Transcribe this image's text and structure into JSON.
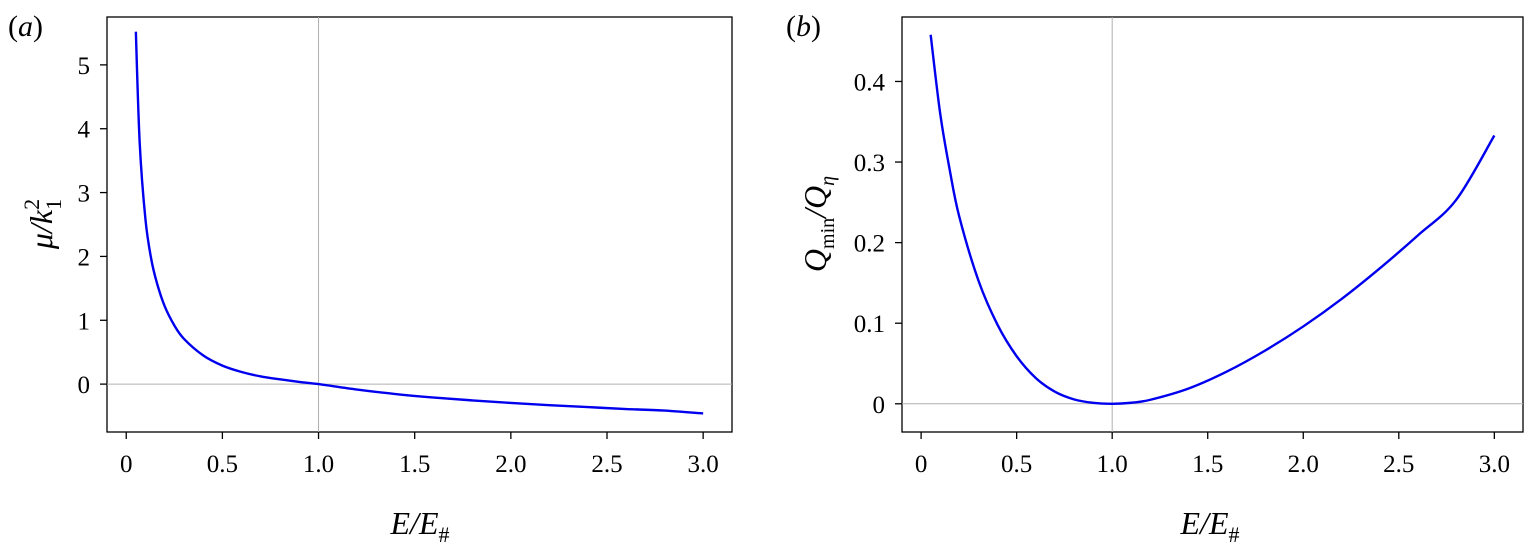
{
  "chart_data": [
    {
      "panel_label_open": "(",
      "panel_label_letter": "a",
      "panel_label_close": ")",
      "type": "line",
      "xlabel": {
        "main": "E/E",
        "sub": "#"
      },
      "ylabel": {
        "main": "μ/k",
        "sup": "2",
        "sub": "1"
      },
      "xlim": [
        -0.1,
        3.15
      ],
      "ylim": [
        -0.75,
        5.75
      ],
      "xticks": [
        0,
        0.5,
        1.0,
        1.5,
        2.0,
        2.5,
        3.0
      ],
      "xtick_labels": [
        "0",
        "0.5",
        "1.0",
        "1.5",
        "2.0",
        "2.5",
        "3.0"
      ],
      "yticks": [
        0,
        1,
        2,
        3,
        4,
        5
      ],
      "ytick_labels": [
        "0",
        "1",
        "2",
        "3",
        "4",
        "5"
      ],
      "reference_lines": {
        "vertical_x": 1.0,
        "horizontal_y": 0
      },
      "series_color": "#0000ee",
      "series": [
        {
          "x": [
            0.05,
            0.07,
            0.1,
            0.13,
            0.16,
            0.2,
            0.25,
            0.3,
            0.4,
            0.5,
            0.6,
            0.7,
            0.8,
            0.9,
            1.0,
            1.2,
            1.4,
            1.6,
            1.8,
            2.0,
            2.2,
            2.4,
            2.6,
            2.8,
            3.0
          ],
          "y": [
            5.52,
            3.78,
            2.58,
            1.96,
            1.58,
            1.22,
            0.92,
            0.71,
            0.45,
            0.29,
            0.19,
            0.12,
            0.075,
            0.035,
            0.0,
            -0.085,
            -0.155,
            -0.21,
            -0.255,
            -0.295,
            -0.33,
            -0.36,
            -0.39,
            -0.415,
            -0.46
          ]
        }
      ]
    },
    {
      "panel_label_open": "(",
      "panel_label_letter": "b",
      "panel_label_close": ")",
      "type": "line",
      "xlabel": {
        "main": "E/E",
        "sub": "#"
      },
      "ylabel": {
        "main": "Q",
        "sub1": "min",
        "mid": "/Q",
        "sub2": "η"
      },
      "xlim": [
        -0.1,
        3.15
      ],
      "ylim": [
        -0.035,
        0.48
      ],
      "xticks": [
        0,
        0.5,
        1.0,
        1.5,
        2.0,
        2.5,
        3.0
      ],
      "xtick_labels": [
        "0",
        "0.5",
        "1.0",
        "1.5",
        "2.0",
        "2.5",
        "3.0"
      ],
      "yticks": [
        0,
        0.1,
        0.2,
        0.3,
        0.4
      ],
      "ytick_labels": [
        "0",
        "0.1",
        "0.2",
        "0.3",
        "0.4"
      ],
      "reference_lines": {
        "vertical_x": 1.0,
        "horizontal_y": 0
      },
      "series_color": "#0000ee",
      "series": [
        {
          "x": [
            0.05,
            0.1,
            0.15,
            0.2,
            0.3,
            0.4,
            0.5,
            0.6,
            0.7,
            0.8,
            0.9,
            1.0,
            1.1,
            1.2,
            1.4,
            1.6,
            1.8,
            2.0,
            2.2,
            2.4,
            2.6,
            2.8,
            3.0
          ],
          "y": [
            0.458,
            0.36,
            0.29,
            0.232,
            0.153,
            0.098,
            0.059,
            0.032,
            0.015,
            0.0055,
            0.0012,
            0.0,
            0.0013,
            0.005,
            0.019,
            0.04,
            0.066,
            0.096,
            0.13,
            0.168,
            0.209,
            0.253,
            0.333
          ]
        }
      ]
    }
  ]
}
